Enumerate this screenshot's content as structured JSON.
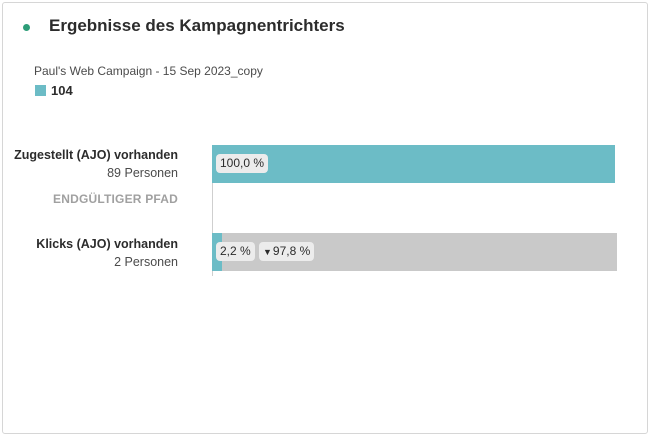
{
  "title": "Ergebnisse des Kampagnentrichters",
  "campaign": "Paul's Web Campaign - 15 Sep 2023_copy",
  "legend": {
    "count": "104",
    "color": "#6cbcc6"
  },
  "colors": {
    "title_dot": "#2d9d78",
    "bar_fill": "#6cbcc6",
    "bar_track": "#c9c9c9"
  },
  "rows": [
    {
      "name": "Zugestellt (AJO) vorhanden",
      "people": "89 Personen",
      "fill_fraction": 1.0,
      "pct_label": "100,0 %"
    },
    {
      "name": "Klicks (AJO) vorhanden",
      "people": "2 Personen",
      "fill_fraction": 0.022,
      "pct_label": "2,2 %",
      "drop_label": "97,8 %"
    }
  ],
  "path_label": "ENDGÜLTIGER PFAD"
}
